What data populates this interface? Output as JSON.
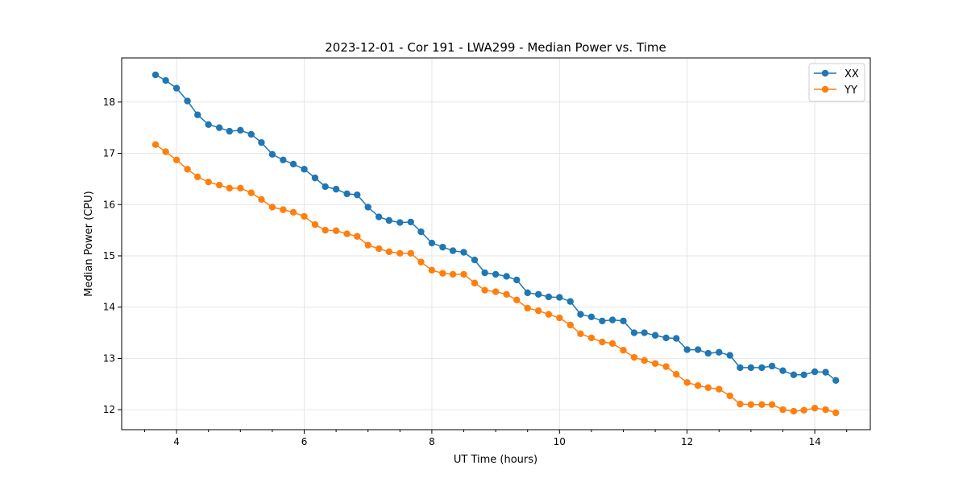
{
  "chart_data": {
    "type": "line",
    "title": "2023-12-01 - Cor 191 - LWA299 - Median Power vs. Time",
    "xlabel": "UT Time (hours)",
    "ylabel": "Median Power (CPU)",
    "xlim": [
      3.14,
      14.87
    ],
    "ylim": [
      11.61,
      18.86
    ],
    "xticks": [
      4,
      6,
      8,
      10,
      12,
      14
    ],
    "xtick_labels": [
      "4",
      "6",
      "8",
      "10",
      "12",
      "14"
    ],
    "yticks": [
      12,
      13,
      14,
      15,
      16,
      17,
      18
    ],
    "ytick_labels": [
      "12",
      "13",
      "14",
      "15",
      "16",
      "17",
      "18"
    ],
    "grid": true,
    "legend": "top-right",
    "x": [
      3.67,
      3.83,
      4.0,
      4.17,
      4.33,
      4.5,
      4.67,
      4.83,
      5.0,
      5.17,
      5.33,
      5.5,
      5.67,
      5.83,
      6.0,
      6.17,
      6.33,
      6.5,
      6.67,
      6.83,
      7.0,
      7.17,
      7.33,
      7.5,
      7.67,
      7.83,
      8.0,
      8.17,
      8.33,
      8.5,
      8.67,
      8.83,
      9.0,
      9.17,
      9.33,
      9.5,
      9.67,
      9.83,
      10.0,
      10.17,
      10.33,
      10.5,
      10.67,
      10.83,
      11.0,
      11.17,
      11.33,
      11.5,
      11.67,
      11.83,
      12.0,
      12.17,
      12.33,
      12.5,
      12.67,
      12.83,
      13.0,
      13.17,
      13.33,
      13.5,
      13.67,
      13.83,
      14.0,
      14.17,
      14.33
    ],
    "series": [
      {
        "name": "XX",
        "color": "#1f77b4",
        "values": [
          18.53,
          18.42,
          18.27,
          18.02,
          17.75,
          17.56,
          17.5,
          17.43,
          17.45,
          17.37,
          17.21,
          16.98,
          16.87,
          16.79,
          16.69,
          16.52,
          16.35,
          16.3,
          16.21,
          16.19,
          15.95,
          15.76,
          15.69,
          15.65,
          15.66,
          15.47,
          15.25,
          15.17,
          15.1,
          15.07,
          14.92,
          14.67,
          14.64,
          14.6,
          14.53,
          14.28,
          14.25,
          14.2,
          14.19,
          14.11,
          13.86,
          13.81,
          13.73,
          13.75,
          13.73,
          13.5,
          13.5,
          13.45,
          13.4,
          13.39,
          13.17,
          13.17,
          13.1,
          13.12,
          13.06,
          12.82,
          12.82,
          12.82,
          12.85,
          12.76,
          12.68,
          12.68,
          12.74,
          12.73,
          12.57
        ]
      },
      {
        "name": "YY",
        "color": "#ff7f0e",
        "values": [
          17.17,
          17.03,
          16.87,
          16.69,
          16.54,
          16.44,
          16.38,
          16.32,
          16.32,
          16.23,
          16.1,
          15.95,
          15.9,
          15.85,
          15.77,
          15.61,
          15.5,
          15.49,
          15.43,
          15.38,
          15.21,
          15.14,
          15.08,
          15.05,
          15.05,
          14.88,
          14.72,
          14.66,
          14.64,
          14.64,
          14.47,
          14.33,
          14.3,
          14.25,
          14.14,
          13.98,
          13.93,
          13.86,
          13.79,
          13.65,
          13.48,
          13.4,
          13.32,
          13.29,
          13.16,
          13.02,
          12.96,
          12.9,
          12.84,
          12.69,
          12.53,
          12.47,
          12.43,
          12.4,
          12.27,
          12.11,
          12.1,
          12.1,
          12.1,
          12.0,
          11.97,
          11.99,
          12.03,
          12.0,
          11.94
        ]
      }
    ]
  }
}
